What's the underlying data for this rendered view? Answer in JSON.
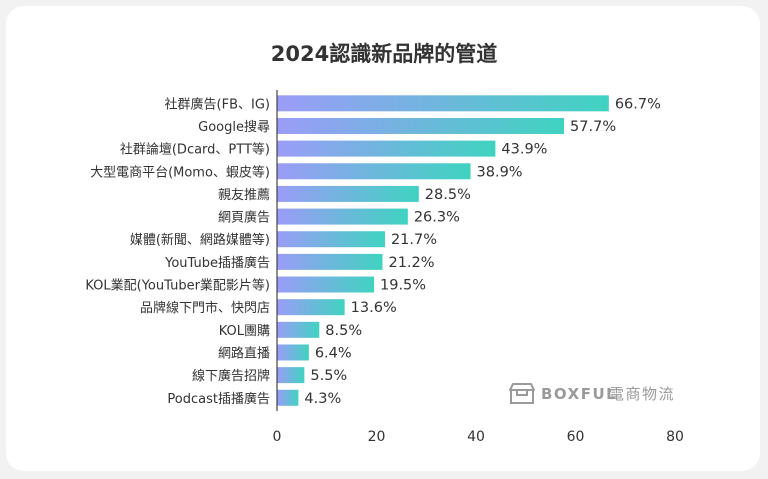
{
  "chart_data": {
    "type": "bar",
    "orientation": "horizontal",
    "title": "2024認識新品牌的管道",
    "categories": [
      "社群廣告(FB、IG)",
      "Google搜尋",
      "社群論壇(Dcard、PTT等)",
      "大型電商平台(Momo、蝦皮等)",
      "親友推薦",
      "網頁廣告",
      "媒體(新聞、網路媒體等)",
      "YouTube插播廣告",
      "KOL業配(YouTuber業配影片等)",
      "品牌線下門市、快閃店",
      "KOL團購",
      "網路直播",
      "線下廣告招牌",
      "Podcast插播廣告"
    ],
    "values": [
      66.7,
      57.7,
      43.9,
      38.9,
      28.5,
      26.3,
      21.7,
      21.2,
      19.5,
      13.6,
      8.5,
      6.4,
      5.5,
      4.3
    ],
    "value_labels": [
      "66.7%",
      "57.7%",
      "43.9%",
      "38.9%",
      "28.5%",
      "26.3%",
      "21.7%",
      "21.2%",
      "19.5%",
      "13.6%",
      "8.5%",
      "6.4%",
      "5.5%",
      "4.3%"
    ],
    "xlim": [
      0,
      80
    ],
    "xticks": [
      "0",
      "20",
      "40",
      "60",
      "80"
    ],
    "grid": false,
    "legend": "none",
    "colors": {
      "gradient_start": "#9b9cf8",
      "gradient_end": "#3fd3c0"
    }
  },
  "watermark": {
    "brand": "BOXFUL",
    "suffix": "電商物流",
    "icon": "box-icon"
  }
}
